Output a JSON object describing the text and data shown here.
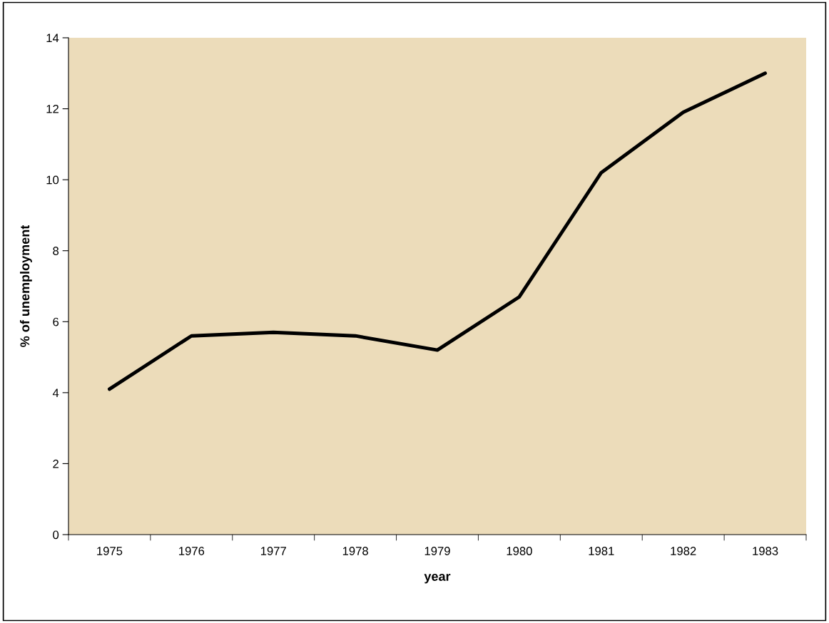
{
  "chart_data": {
    "type": "line",
    "xlabel": "year",
    "ylabel": "% of unemployment",
    "categories": [
      "1975",
      "1976",
      "1977",
      "1978",
      "1979",
      "1980",
      "1981",
      "1982",
      "1983"
    ],
    "series": [
      {
        "color": "#000000",
        "values": [
          4.1,
          5.6,
          5.7,
          5.6,
          5.2,
          6.7,
          10.2,
          11.9,
          13.0
        ]
      }
    ],
    "ylim": [
      0,
      14
    ],
    "yticks": [
      0,
      2,
      4,
      6,
      8,
      10,
      12,
      14
    ],
    "grid": false,
    "legend": false,
    "marker": "none",
    "line_style": "solid"
  }
}
